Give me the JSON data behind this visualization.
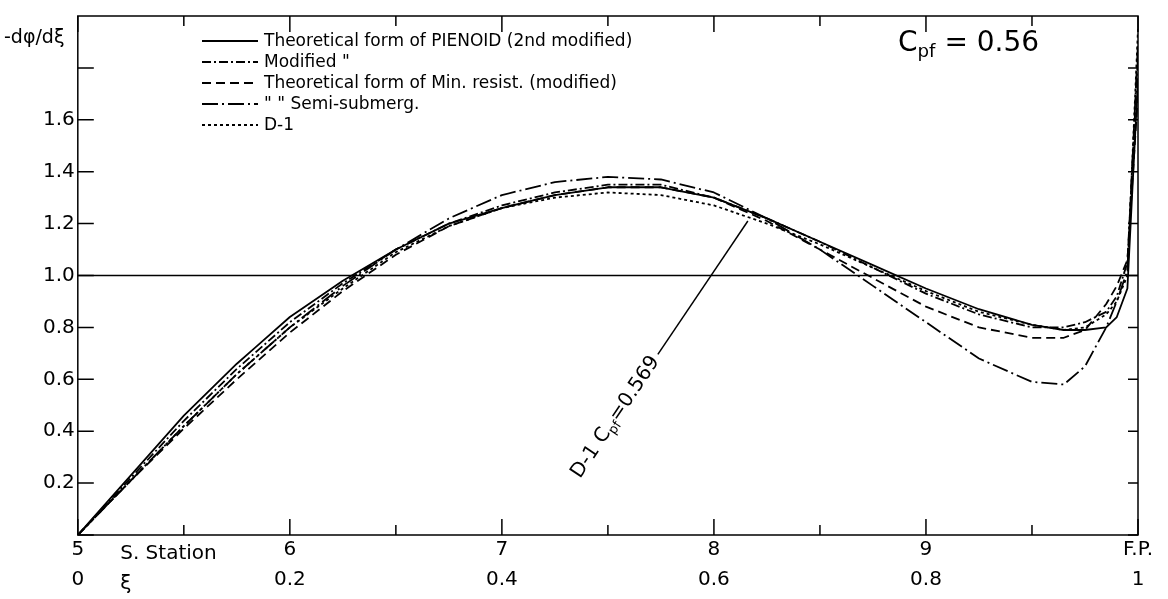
{
  "chart_data": {
    "type": "line",
    "ylabel": "-dφ/dξ",
    "xlabel": "ξ",
    "x2label": "S. Station",
    "x": [
      0,
      0.05,
      0.1,
      0.15,
      0.2,
      0.25,
      0.3,
      0.35,
      0.4,
      0.45,
      0.5,
      0.55,
      0.6,
      0.65,
      0.7,
      0.75,
      0.8,
      0.85,
      0.9,
      0.93,
      0.95,
      0.97,
      0.98,
      0.99,
      1.0
    ],
    "series": [
      {
        "name": "Theoretical form of PIENOID (2nd modified)",
        "color": "#000000",
        "line_style": "solid",
        "values": [
          0,
          0.23,
          0.46,
          0.66,
          0.84,
          0.98,
          1.1,
          1.2,
          1.26,
          1.31,
          1.34,
          1.34,
          1.3,
          1.22,
          1.13,
          1.04,
          0.95,
          0.87,
          0.81,
          0.79,
          0.79,
          0.8,
          0.84,
          0.95,
          1.76
        ]
      },
      {
        "name": "Modified \"",
        "color": "#000000",
        "line_style": "dashdot",
        "values": [
          0,
          0.22,
          0.44,
          0.64,
          0.82,
          0.97,
          1.1,
          1.2,
          1.27,
          1.32,
          1.35,
          1.35,
          1.3,
          1.22,
          1.13,
          1.03,
          0.93,
          0.85,
          0.8,
          0.8,
          0.82,
          0.86,
          0.92,
          1.05,
          1.85
        ]
      },
      {
        "name": "Theoretical form of Min. resist. (modified)",
        "color": "#000000",
        "line_style": "dashed",
        "values": [
          0,
          0.21,
          0.41,
          0.6,
          0.78,
          0.94,
          1.08,
          1.19,
          1.26,
          1.31,
          1.34,
          1.34,
          1.3,
          1.21,
          1.1,
          0.99,
          0.88,
          0.8,
          0.76,
          0.76,
          0.79,
          0.89,
          0.96,
          1.06,
          1.7
        ]
      },
      {
        "name": "\" \" Semi-submerg.",
        "color": "#000000",
        "line_style": "longdashdot",
        "values": [
          0,
          0.21,
          0.42,
          0.62,
          0.8,
          0.96,
          1.1,
          1.22,
          1.31,
          1.36,
          1.38,
          1.37,
          1.32,
          1.22,
          1.1,
          0.96,
          0.82,
          0.68,
          0.59,
          0.58,
          0.65,
          0.8,
          0.9,
          1.02,
          1.9
        ]
      },
      {
        "name": "D-1",
        "color": "#000000",
        "line_style": "dotted",
        "values": [
          0,
          0.21,
          0.42,
          0.62,
          0.8,
          0.95,
          1.09,
          1.19,
          1.26,
          1.3,
          1.32,
          1.31,
          1.27,
          1.2,
          1.12,
          1.03,
          0.94,
          0.86,
          0.81,
          0.79,
          0.8,
          0.85,
          0.9,
          1.0,
          1.95
        ]
      }
    ],
    "xlim": [
      0,
      1
    ],
    "xticks": [
      0,
      {
        "value": 0.1,
        "label": null
      },
      0.2,
      {
        "value": 0.3,
        "label": null
      },
      0.4,
      {
        "value": 0.5,
        "label": null
      },
      0.6,
      {
        "value": 0.7,
        "label": null
      },
      0.8,
      {
        "value": 0.9,
        "label": null
      },
      1
    ],
    "x2lim": [
      5,
      10
    ],
    "x2ticks": [
      5,
      6,
      7,
      8,
      9,
      {
        "value": 10,
        "label": "F.P."
      }
    ],
    "ylim": [
      0,
      2
    ],
    "yticks": [
      {
        "value": 0,
        "label": null
      },
      0.2,
      0.4,
      0.6,
      0.8,
      {
        "value": 1.0,
        "label": "1.0"
      },
      1.2,
      1.4,
      1.6,
      {
        "value": 1.8,
        "label": null
      }
    ],
    "ref_lines": [
      {
        "axis": "y",
        "value": 1.0,
        "color": "#000000"
      }
    ],
    "annotations": [
      "C$_{pf}$ = 0.56",
      {
        "text": "D-1 C$_{pf}$=0.569",
        "x": 0.632,
        "y": 1.21
      }
    ],
    "legend": "top left",
    "grid": false,
    "marker": "none"
  }
}
